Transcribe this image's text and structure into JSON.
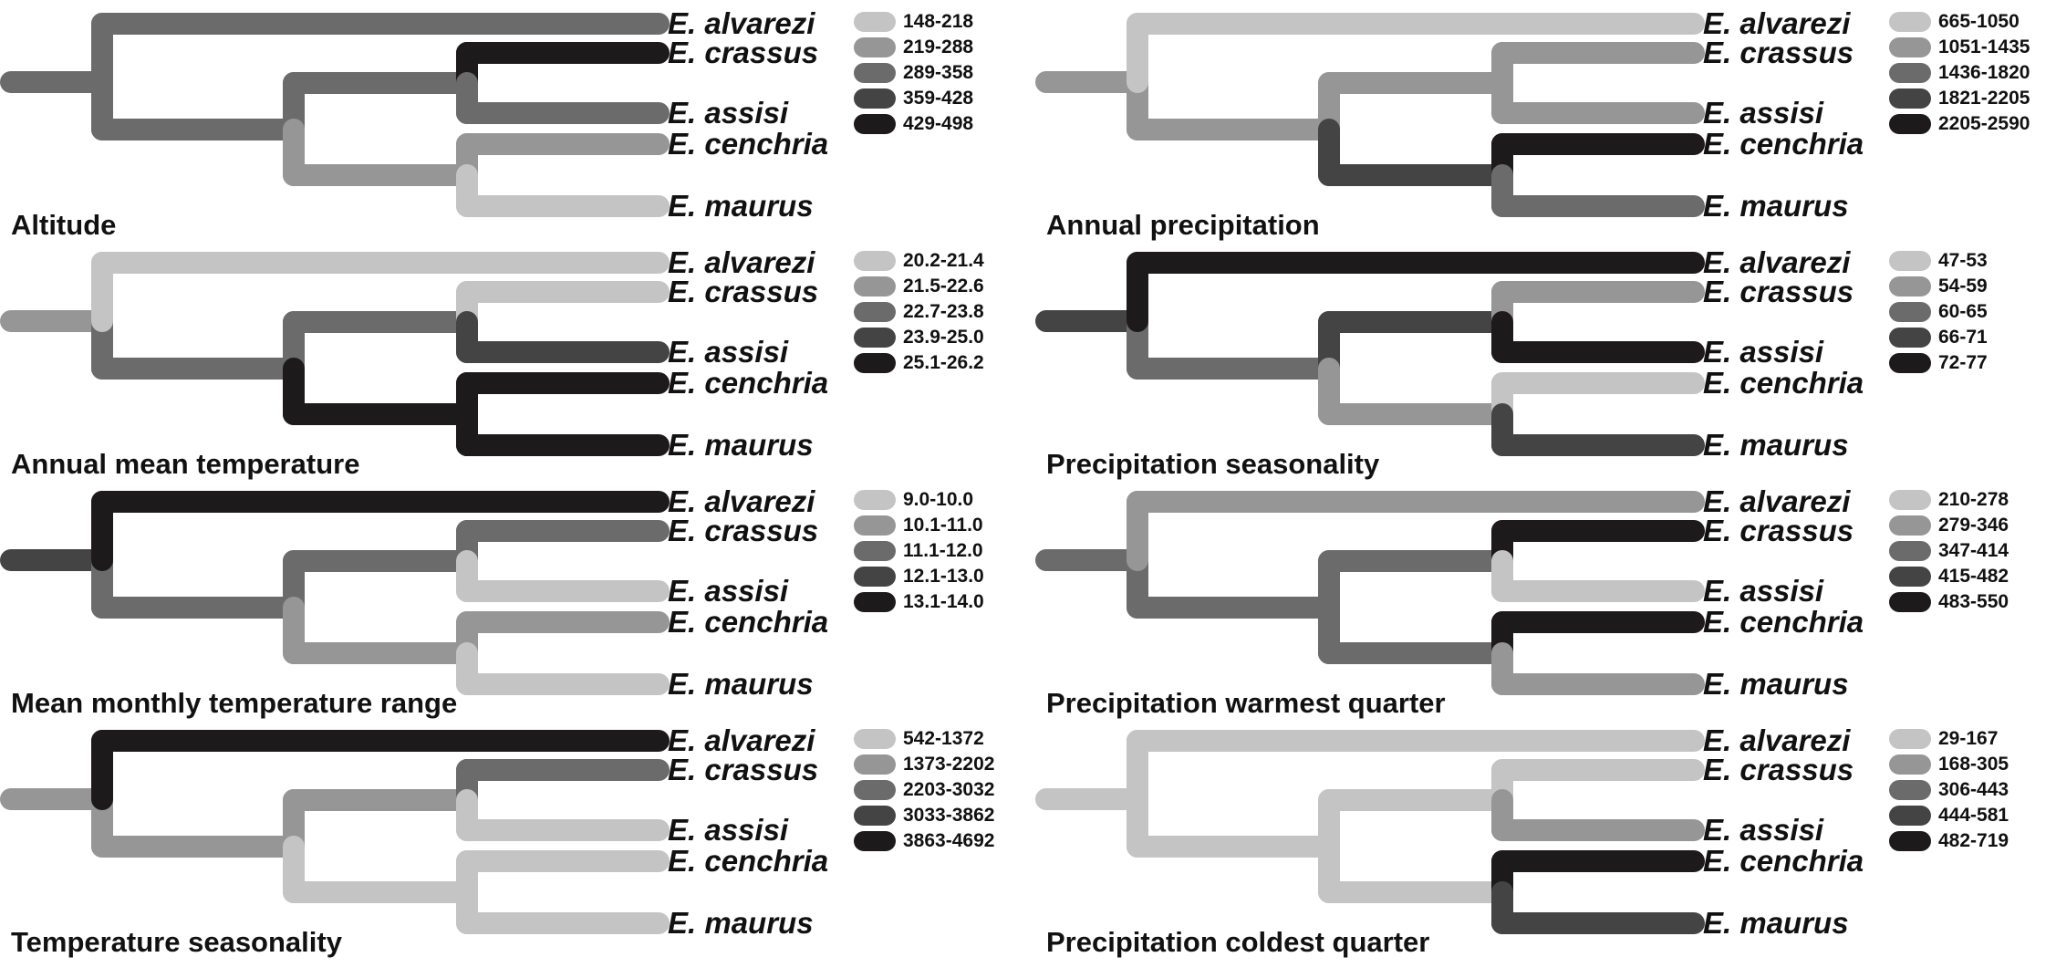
{
  "figure": {
    "species": [
      "E. alvarezi",
      "E. crassus",
      "E. assisi",
      "E. cenchria",
      "E. maurus"
    ],
    "shade_scale": [
      "#c4c4c4",
      "#969696",
      "#6b6b6b",
      "#444444",
      "#1c1a1a"
    ],
    "panels": [
      {
        "title": "Altitude",
        "legend": [
          "148-218",
          "219-288",
          "289-358",
          "359-428",
          "429-498"
        ],
        "branch_classes": {
          "stem": 3,
          "alvarezi": 3,
          "rest": 3,
          "cr_as": 3,
          "crassus": 5,
          "assisi": 3,
          "ce_ma": 2,
          "cenchria": 2,
          "maurus": 1
        }
      },
      {
        "title": "Annual precipitation",
        "legend": [
          "665-1050",
          "1051-1435",
          "1436-1820",
          "1821-2205",
          "2205-2590"
        ],
        "branch_classes": {
          "stem": 2,
          "alvarezi": 1,
          "rest": 2,
          "cr_as": 2,
          "crassus": 2,
          "assisi": 2,
          "ce_ma": 4,
          "cenchria": 5,
          "maurus": 3
        }
      },
      {
        "title": "Annual mean temperature",
        "legend": [
          "20.2-21.4",
          "21.5-22.6",
          "22.7-23.8",
          "23.9-25.0",
          "25.1-26.2"
        ],
        "branch_classes": {
          "stem": 2,
          "alvarezi": 1,
          "rest": 3,
          "cr_as": 3,
          "crassus": 1,
          "assisi": 4,
          "ce_ma": 5,
          "cenchria": 5,
          "maurus": 5
        }
      },
      {
        "title": "Precipitation seasonality",
        "legend": [
          "47-53",
          "54-59",
          "60-65",
          "66-71",
          "72-77"
        ],
        "branch_classes": {
          "stem": 4,
          "alvarezi": 5,
          "rest": 3,
          "cr_as": 4,
          "crassus": 2,
          "assisi": 5,
          "ce_ma": 2,
          "cenchria": 1,
          "maurus": 4
        }
      },
      {
        "title": "Mean monthly temperature range",
        "legend": [
          "9.0-10.0",
          "10.1-11.0",
          "11.1-12.0",
          "12.1-13.0",
          "13.1-14.0"
        ],
        "branch_classes": {
          "stem": 4,
          "alvarezi": 5,
          "rest": 3,
          "cr_as": 3,
          "crassus": 3,
          "assisi": 1,
          "ce_ma": 2,
          "cenchria": 2,
          "maurus": 1
        }
      },
      {
        "title": "Precipitation warmest quarter",
        "legend": [
          "210-278",
          "279-346",
          "347-414",
          "415-482",
          "483-550"
        ],
        "branch_classes": {
          "stem": 3,
          "alvarezi": 2,
          "rest": 3,
          "cr_as": 3,
          "crassus": 5,
          "assisi": 1,
          "ce_ma": 3,
          "cenchria": 5,
          "maurus": 2
        }
      },
      {
        "title": "Temperature seasonality",
        "legend": [
          "542-1372",
          "1373-2202",
          "2203-3032",
          "3033-3862",
          "3863-4692"
        ],
        "branch_classes": {
          "stem": 2,
          "alvarezi": 5,
          "rest": 2,
          "cr_as": 2,
          "crassus": 3,
          "assisi": 1,
          "ce_ma": 1,
          "cenchria": 1,
          "maurus": 1
        }
      },
      {
        "title": "Precipitation coldest quarter",
        "legend": [
          "29-167",
          "168-305",
          "306-443",
          "444-581",
          "482-719"
        ],
        "branch_classes": {
          "stem": 1,
          "alvarezi": 1,
          "rest": 1,
          "cr_as": 1,
          "crassus": 1,
          "assisi": 2,
          "ce_ma": 1,
          "cenchria": 5,
          "maurus": 4
        }
      }
    ]
  }
}
